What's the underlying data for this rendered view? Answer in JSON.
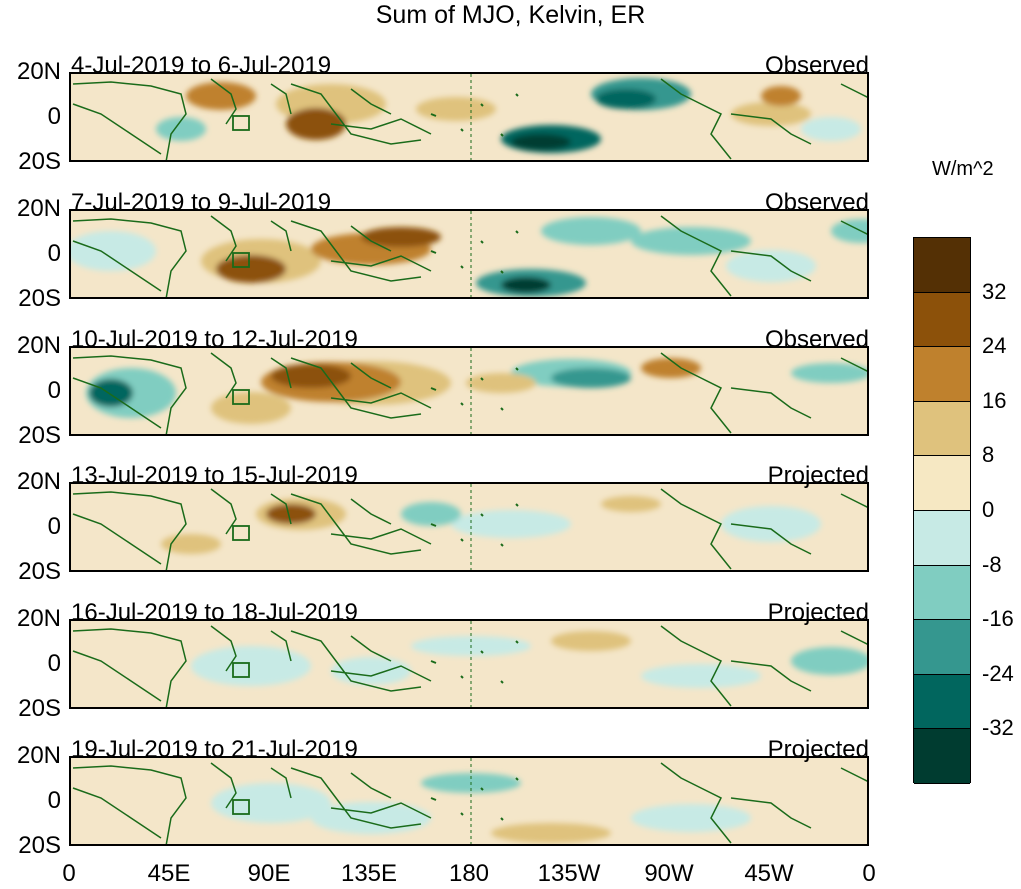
{
  "title": "Sum of MJO, Kelvin, ER",
  "panels": [
    {
      "period": "4-Jul-2019 to 6-Jul-2019",
      "status": "Observed"
    },
    {
      "period": "7-Jul-2019 to 9-Jul-2019",
      "status": "Observed"
    },
    {
      "period": "10-Jul-2019 to 12-Jul-2019",
      "status": "Observed"
    },
    {
      "period": "13-Jul-2019 to 15-Jul-2019",
      "status": "Projected"
    },
    {
      "period": "16-Jul-2019 to 18-Jul-2019",
      "status": "Projected"
    },
    {
      "period": "19-Jul-2019 to 21-Jul-2019",
      "status": "Projected"
    }
  ],
  "lat_labels": [
    "20N",
    "0",
    "20S"
  ],
  "lon_labels": [
    "0",
    "45E",
    "90E",
    "135E",
    "180",
    "135W",
    "90W",
    "45W",
    "0"
  ],
  "colorbar": {
    "units": "W/m^2",
    "labels": [
      "32",
      "24",
      "16",
      "8",
      "0",
      "-8",
      "-16",
      "-24",
      "-32"
    ],
    "colors": [
      "#543005",
      "#8c510a",
      "#bf812d",
      "#dfc27d",
      "#f6e8c3",
      "#c7eae5",
      "#80cdc1",
      "#35978f",
      "#01665e",
      "#003c30"
    ]
  },
  "map_colors": {
    "land_outline": "#1a6b1a",
    "ocean_base": "#f4e6c9"
  }
}
